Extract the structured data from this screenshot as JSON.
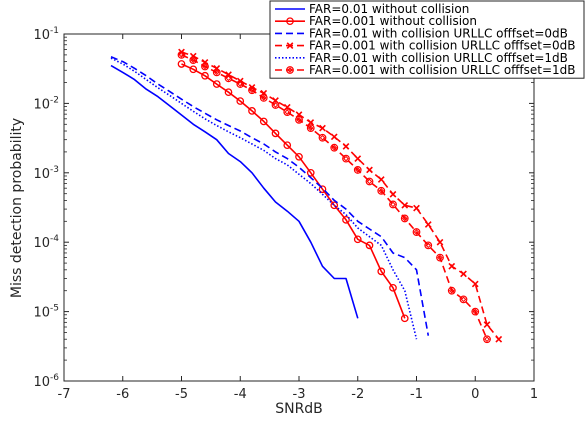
{
  "chart_data": {
    "type": "line",
    "xlabel": "SNRdB",
    "ylabel": "Miss detection probability",
    "xlim": [
      -7,
      1
    ],
    "ylim": [
      1e-06,
      0.1
    ],
    "y_scale": "log",
    "x_ticks": [
      -7,
      -6,
      -5,
      -4,
      -3,
      -2,
      -1,
      0,
      1
    ],
    "x_tick_labels": [
      "-7",
      "-6",
      "-5",
      "-4",
      "-3",
      "-2",
      "-1",
      "0",
      "1"
    ],
    "y_tick_labels": [
      {
        "base": "10",
        "exp": "-6",
        "value": 1e-06
      },
      {
        "base": "10",
        "exp": "-5",
        "value": 1e-05
      },
      {
        "base": "10",
        "exp": "-4",
        "value": 0.0001
      },
      {
        "base": "10",
        "exp": "-3",
        "value": 0.001
      },
      {
        "base": "10",
        "exp": "-2",
        "value": 0.01
      },
      {
        "base": "10",
        "exp": "-1",
        "value": 0.1
      }
    ],
    "grid": false,
    "legend_position": "top-right",
    "series": [
      {
        "name": "FAR=0.01 without collision",
        "color": "#0000ff",
        "dash": "solid",
        "marker": "none",
        "x": [
          -6.2,
          -6.0,
          -5.8,
          -5.6,
          -5.4,
          -5.2,
          -5.0,
          -4.8,
          -4.6,
          -4.4,
          -4.2,
          -4.0,
          -3.8,
          -3.6,
          -3.4,
          -3.2,
          -3.0,
          -2.8,
          -2.6,
          -2.4,
          -2.2,
          -2.0
        ],
        "y": [
          0.035,
          0.028,
          0.022,
          0.016,
          0.0125,
          0.0092,
          0.0068,
          0.005,
          0.0039,
          0.003,
          0.0019,
          0.00145,
          0.001,
          0.0006,
          0.00038,
          0.00028,
          0.0002,
          0.0001,
          4.5e-05,
          3e-05,
          3e-05,
          8e-06
        ]
      },
      {
        "name": "FAR=0.001 without collision",
        "color": "#ff0000",
        "dash": "solid",
        "marker": "circle",
        "x": [
          -5.0,
          -4.8,
          -4.6,
          -4.4,
          -4.2,
          -4.0,
          -3.8,
          -3.6,
          -3.4,
          -3.2,
          -3.0,
          -2.8,
          -2.6,
          -2.4,
          -2.2,
          -2.0,
          -1.8,
          -1.6,
          -1.4,
          -1.2
        ],
        "y": [
          0.037,
          0.031,
          0.025,
          0.019,
          0.0145,
          0.0108,
          0.0078,
          0.0055,
          0.0037,
          0.0025,
          0.0017,
          0.001,
          0.00058,
          0.00034,
          0.00021,
          0.00011,
          9e-05,
          3.8e-05,
          2.2e-05,
          8e-06
        ]
      },
      {
        "name": "FAR=0.01 with collision URLLC offfset=0dB",
        "color": "#0000ff",
        "dash": "dashed",
        "marker": "none",
        "x": [
          -6.2,
          -6.0,
          -5.8,
          -5.6,
          -5.4,
          -5.2,
          -5.0,
          -4.8,
          -4.6,
          -4.4,
          -4.2,
          -4.0,
          -3.8,
          -3.6,
          -3.4,
          -3.2,
          -3.0,
          -2.8,
          -2.6,
          -2.4,
          -2.2,
          -2.0,
          -1.8,
          -1.6,
          -1.4,
          -1.2,
          -1.0,
          -0.8
        ],
        "y": [
          0.047,
          0.04,
          0.032,
          0.025,
          0.019,
          0.0148,
          0.0115,
          0.009,
          0.0072,
          0.0058,
          0.0048,
          0.004,
          0.0032,
          0.0026,
          0.002,
          0.0016,
          0.0012,
          0.00085,
          0.0006,
          0.0004,
          0.0003,
          0.0002,
          0.000155,
          0.00012,
          7e-05,
          6e-05,
          4e-05,
          4.5e-06
        ]
      },
      {
        "name": "FAR=0.001 with collision URLLC offfset=0dB",
        "color": "#ff0000",
        "dash": "dashed",
        "marker": "x",
        "x": [
          -5.0,
          -4.8,
          -4.6,
          -4.4,
          -4.2,
          -4.0,
          -3.8,
          -3.6,
          -3.4,
          -3.2,
          -3.0,
          -2.8,
          -2.6,
          -2.4,
          -2.2,
          -2.0,
          -1.8,
          -1.6,
          -1.4,
          -1.2,
          -1.0,
          -0.8,
          -0.6,
          -0.4,
          -0.2,
          0.0,
          0.2,
          0.4
        ],
        "y": [
          0.055,
          0.048,
          0.039,
          0.032,
          0.026,
          0.021,
          0.017,
          0.014,
          0.011,
          0.0088,
          0.0069,
          0.0053,
          0.0044,
          0.0033,
          0.0024,
          0.0016,
          0.0011,
          0.0008,
          0.00049,
          0.00034,
          0.00031,
          0.00018,
          0.0001,
          4.5e-05,
          3.5e-05,
          2.5e-05,
          6.5e-06,
          4e-06
        ]
      },
      {
        "name": "FAR=0.01 with collision URLLC offfset=1dB",
        "color": "#0000ff",
        "dash": "dotted",
        "marker": "none",
        "x": [
          -6.2,
          -6.0,
          -5.8,
          -5.6,
          -5.4,
          -5.2,
          -5.0,
          -4.8,
          -4.6,
          -4.4,
          -4.2,
          -4.0,
          -3.8,
          -3.6,
          -3.4,
          -3.2,
          -3.0,
          -2.8,
          -2.6,
          -2.4,
          -2.2,
          -2.0,
          -1.8,
          -1.6,
          -1.4,
          -1.2,
          -1.0
        ],
        "y": [
          0.045,
          0.037,
          0.029,
          0.022,
          0.0168,
          0.013,
          0.01,
          0.0077,
          0.006,
          0.0048,
          0.0039,
          0.0032,
          0.0026,
          0.0021,
          0.0016,
          0.0013,
          0.00095,
          0.0007,
          0.00049,
          0.00034,
          0.00025,
          0.00016,
          0.00012,
          9e-05,
          4e-05,
          2e-05,
          4e-06
        ]
      },
      {
        "name": "FAR=0.001 with collision URLLC offfset=1dB",
        "color": "#ff0000",
        "dash": "dashed",
        "marker": "diamond-circle",
        "x": [
          -5.0,
          -4.8,
          -4.6,
          -4.4,
          -4.2,
          -4.0,
          -3.8,
          -3.6,
          -3.4,
          -3.2,
          -3.0,
          -2.8,
          -2.6,
          -2.4,
          -2.2,
          -2.0,
          -1.8,
          -1.6,
          -1.4,
          -1.2,
          -1.0,
          -0.8,
          -0.6,
          -0.4,
          -0.2,
          0.0,
          0.2
        ],
        "y": [
          0.05,
          0.042,
          0.034,
          0.028,
          0.023,
          0.019,
          0.0155,
          0.012,
          0.0095,
          0.0075,
          0.0058,
          0.0044,
          0.0032,
          0.0023,
          0.0016,
          0.0011,
          0.00075,
          0.00055,
          0.00035,
          0.00022,
          0.00014,
          9e-05,
          6e-05,
          2e-05,
          1.5e-05,
          1e-05,
          4e-06
        ]
      }
    ]
  }
}
